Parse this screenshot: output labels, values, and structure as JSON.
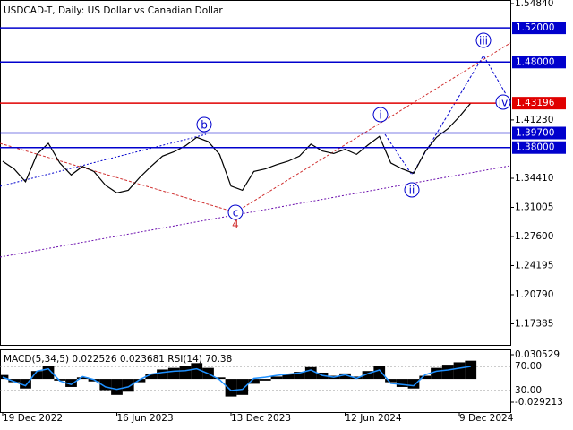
{
  "chart_data": [
    {
      "type": "line",
      "title": "USDCAD-T, Daily:  US Dollar vs Canadian Dollar",
      "categories": [
        "19 Dec 2022",
        null,
        null,
        null,
        null,
        null,
        null,
        null,
        null,
        null,
        "16 Jun 2023",
        null,
        null,
        null,
        null,
        null,
        null,
        null,
        null,
        null,
        "13 Dec 2023",
        null,
        null,
        null,
        null,
        null,
        null,
        null,
        null,
        null,
        "12 Jun 2024",
        null,
        null,
        null,
        null,
        null,
        null,
        null,
        null,
        null,
        "9 Dec 2024",
        null
      ],
      "series": [
        {
          "color": "#000000",
          "values": [
            1.364,
            1.355,
            1.34,
            1.372,
            1.385,
            1.362,
            1.348,
            1.358,
            1.352,
            1.336,
            1.327,
            1.33,
            1.345,
            1.358,
            1.37,
            1.375,
            1.382,
            1.392,
            1.387,
            1.372,
            1.335,
            1.33,
            1.352,
            1.355,
            1.36,
            1.364,
            1.37,
            1.384,
            1.376,
            1.373,
            1.378,
            1.372,
            1.383,
            1.393,
            1.362,
            1.355,
            1.35,
            1.375,
            1.392,
            1.402,
            1.416,
            1.432
          ]
        }
      ],
      "ylim": [
        1.1492,
        1.5526
      ],
      "yticks": [
        {
          "value": 1.5484,
          "label": "1.54840"
        },
        {
          "value": 1.4123,
          "label": "1.41230"
        },
        {
          "value": 1.3441,
          "label": "1.34410"
        },
        1.31005,
        {
          "value": 1.276,
          "label": "1.27600"
        },
        1.24195,
        {
          "value": 1.2079,
          "label": "1.20790"
        },
        1.17385
      ],
      "levels": [
        {
          "value": 1.52,
          "label": "1.52000",
          "color": "#0000cd"
        },
        {
          "value": 1.48,
          "label": "1.48000",
          "color": "#0000cd"
        },
        {
          "value": 1.43196,
          "color": "#e00000"
        },
        {
          "value": 1.397,
          "label": "1.39700",
          "color": "#0000cd"
        },
        {
          "value": 1.38,
          "label": "1.38000",
          "color": "#0000cd"
        }
      ],
      "annotations": [
        "b",
        "c",
        "4",
        "i",
        "ii",
        "iii",
        "iv"
      ]
    },
    {
      "type": "macd",
      "title": "MACD(5,34,5) 0.022526 0.023681 RSI(14) 70.38",
      "ylim": [
        -5.6,
        98.1
      ],
      "yticks": [
        {
          "value": 70,
          "label": "70.00"
        },
        {
          "value": 30,
          "label": "30.00"
        }
      ],
      "y2lim": [
        -0.04161,
        0.03729
      ],
      "y2ticks": [
        0.030529,
        -0.029213
      ],
      "series": [
        {
          "type": "bar",
          "axis": "y2",
          "color": "#000000",
          "values": [
            0.005,
            -0.004,
            -0.012,
            0.01,
            0.016,
            -0.002,
            -0.01,
            0.002,
            -0.003,
            -0.014,
            -0.02,
            -0.016,
            -0.004,
            0.006,
            0.012,
            0.014,
            0.016,
            0.02,
            0.014,
            0.002,
            -0.022,
            -0.02,
            -0.006,
            -0.002,
            0.003,
            0.006,
            0.009,
            0.015,
            0.008,
            0.004,
            0.007,
            0.003,
            0.01,
            0.016,
            -0.004,
            -0.01,
            -0.012,
            0.004,
            0.014,
            0.018,
            0.021,
            0.023
          ]
        },
        {
          "color": "#1e90ff",
          "values": [
            52,
            45,
            38,
            62,
            66,
            46,
            40,
            53,
            48,
            36,
            32,
            36,
            48,
            57,
            60,
            62,
            63,
            66,
            58,
            48,
            30,
            32,
            50,
            52,
            55,
            57,
            59,
            64,
            55,
            52,
            56,
            50,
            58,
            64,
            42,
            40,
            38,
            56,
            62,
            64,
            67,
            70
          ]
        }
      ]
    }
  ]
}
